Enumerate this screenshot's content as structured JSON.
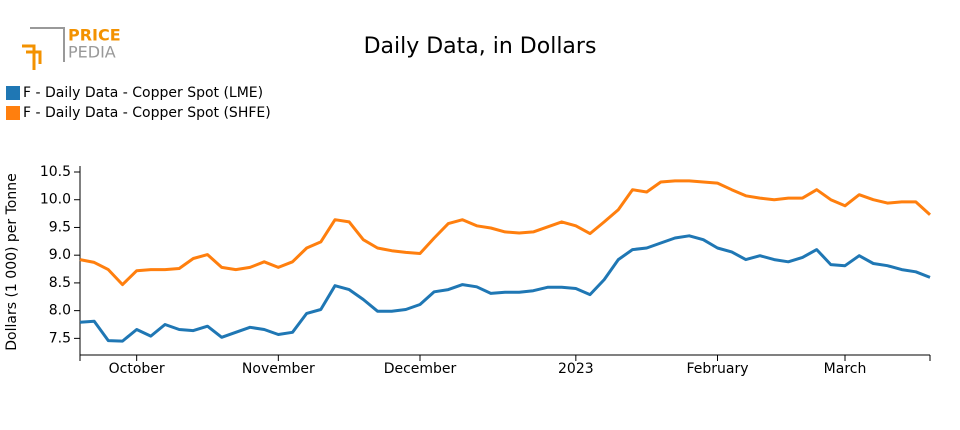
{
  "logo": {
    "line1": "PRICE",
    "line2": "PEDIA"
  },
  "chart_data": {
    "type": "line",
    "title": "Daily Data, in Dollars",
    "y_label": "Dollars (1 000) per Tonne",
    "categories": [
      null,
      null,
      null,
      null,
      "October",
      null,
      null,
      null,
      null,
      null,
      null,
      null,
      null,
      null,
      "November",
      null,
      null,
      null,
      null,
      null,
      null,
      null,
      null,
      null,
      "December",
      null,
      null,
      null,
      null,
      null,
      null,
      null,
      null,
      null,
      null,
      "2023",
      null,
      null,
      null,
      null,
      null,
      null,
      null,
      null,
      null,
      "February",
      null,
      null,
      null,
      null,
      null,
      null,
      null,
      null,
      "March",
      null,
      null,
      null,
      null,
      null,
      null
    ],
    "series": [
      {
        "name": "F - Daily Data - Copper Spot (LME)",
        "color": "#1f77b4",
        "values": [
          7.79,
          7.81,
          7.46,
          7.45,
          7.66,
          7.54,
          7.75,
          7.66,
          7.64,
          7.72,
          7.52,
          7.61,
          7.7,
          7.66,
          7.57,
          7.61,
          7.95,
          8.02,
          8.45,
          8.38,
          8.2,
          7.99,
          7.99,
          8.02,
          8.11,
          8.34,
          8.38,
          8.47,
          8.43,
          8.31,
          8.33,
          8.33,
          8.36,
          8.42,
          8.42,
          8.4,
          8.29,
          8.56,
          8.92,
          9.1,
          9.13,
          9.22,
          9.31,
          9.35,
          9.28,
          9.13,
          9.06,
          8.92,
          8.99,
          8.92,
          8.88,
          8.96,
          9.1,
          8.83,
          8.81,
          8.99,
          8.85,
          8.81,
          8.74,
          8.7,
          8.6
        ]
      },
      {
        "name": "F - Daily Data - Copper Spot (SHFE)",
        "color": "#ff7f0e",
        "values": [
          8.92,
          8.87,
          8.74,
          8.47,
          8.72,
          8.74,
          8.74,
          8.76,
          8.94,
          9.01,
          8.78,
          8.74,
          8.78,
          8.88,
          8.78,
          8.88,
          9.13,
          9.24,
          9.64,
          9.6,
          9.28,
          9.13,
          9.08,
          9.05,
          9.03,
          9.31,
          9.57,
          9.64,
          9.53,
          9.49,
          9.42,
          9.4,
          9.42,
          9.51,
          9.6,
          9.53,
          9.39,
          9.6,
          9.82,
          10.18,
          10.14,
          10.32,
          10.34,
          10.34,
          10.32,
          10.3,
          10.18,
          10.07,
          10.03,
          10.0,
          10.03,
          10.03,
          10.18,
          10.0,
          9.89,
          10.09,
          10.0,
          9.94,
          9.96,
          9.96,
          9.73
        ]
      }
    ],
    "ylim": [
      7.2,
      10.5
    ],
    "yticks": [
      7.5,
      {
        "value": 8,
        "label": "8.0"
      },
      8.5,
      {
        "value": 9,
        "label": "9.0"
      },
      9.5,
      {
        "value": 10,
        "label": "10.0"
      },
      10.5
    ],
    "legend": "top-left"
  }
}
